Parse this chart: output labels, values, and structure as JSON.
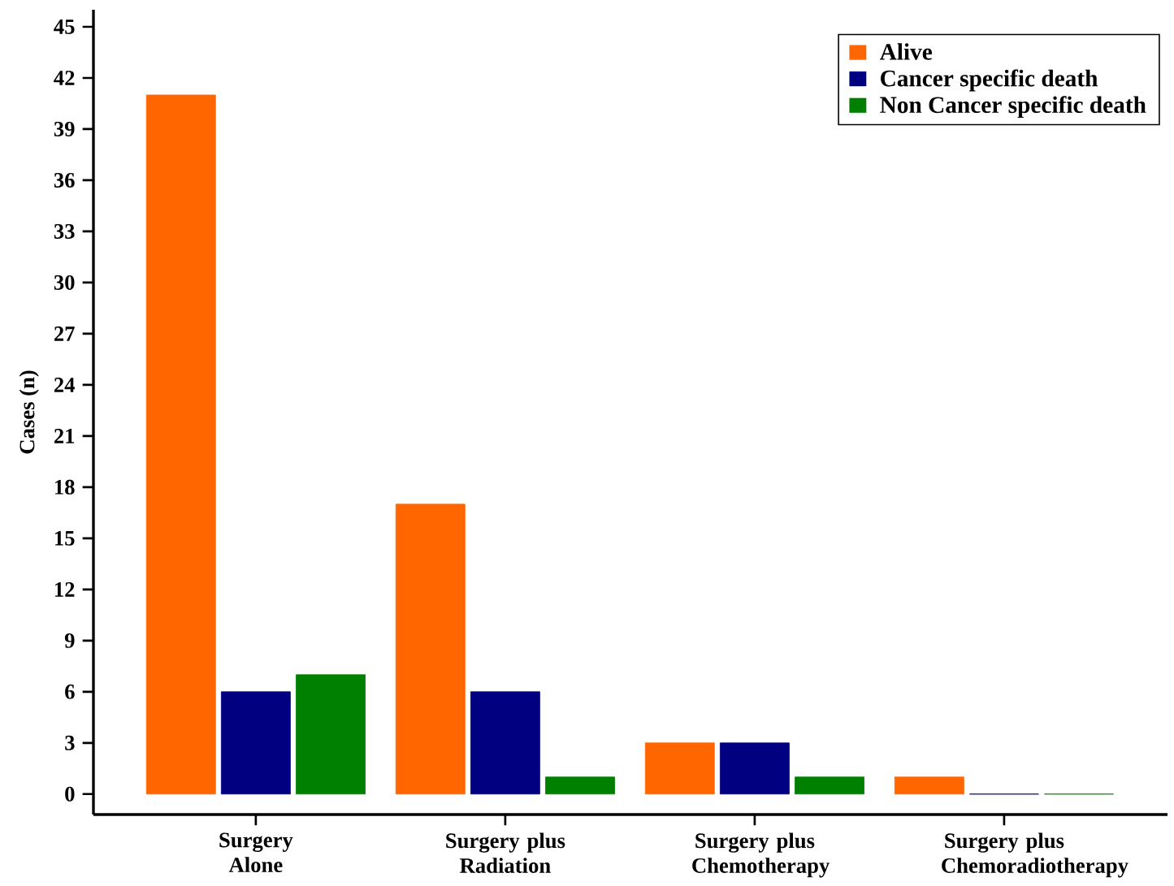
{
  "chart_data": {
    "type": "bar",
    "ylabel": "Cases (n)",
    "categories": [
      "Surgery Alone",
      "Surgery plus Radiation",
      "Surgery plus Chemotherapy",
      "Surgery plus Chemoradiotherapy"
    ],
    "series": [
      {
        "name": "Alive",
        "color": "#ff6600",
        "values": [
          41,
          17,
          3,
          1
        ]
      },
      {
        "name": "Cancer specific death",
        "color": "#000080",
        "values": [
          6,
          6,
          3,
          0
        ]
      },
      {
        "name": "Non Cancer specific death",
        "color": "#008000",
        "values": [
          7,
          1,
          1,
          0
        ]
      }
    ],
    "ylim": [
      -1.2,
      46
    ],
    "yticks": [
      0,
      3,
      6,
      9,
      12,
      15,
      18,
      21,
      24,
      27,
      30,
      33,
      36,
      39,
      42,
      45
    ],
    "legend": "top right"
  }
}
